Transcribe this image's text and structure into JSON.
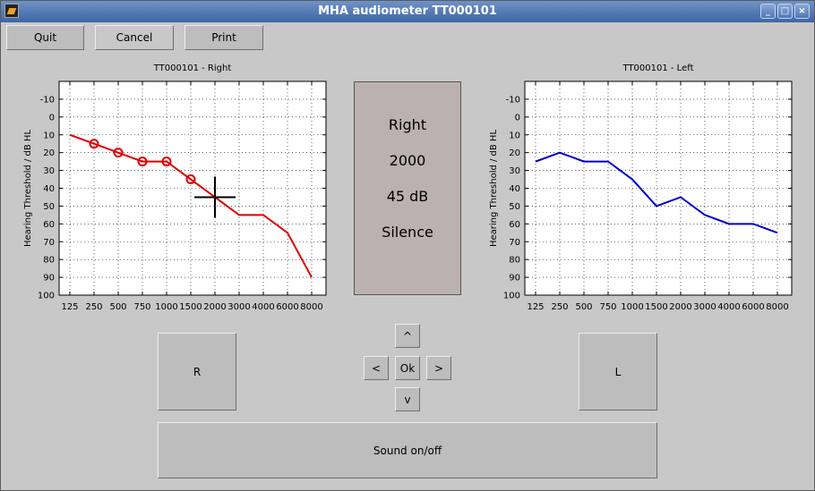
{
  "window": {
    "title": "MHA audiometer TT000101",
    "buttons": {
      "minimize": "_",
      "maximize": "□",
      "close": "×"
    }
  },
  "toolbar": {
    "quit_label": "Quit",
    "cancel_label": "Cancel",
    "print_label": "Print"
  },
  "status": {
    "ear": "Right",
    "frequency": "2000",
    "level": "45 dB",
    "sound": "Silence"
  },
  "controls": {
    "r_label": "R",
    "l_label": "L",
    "up_label": "^",
    "down_label": "v",
    "left_label": "<",
    "right_label": ">",
    "ok_label": "Ok",
    "sound_label": "Sound on/off"
  },
  "colors": {
    "right": "#e00000",
    "left": "#0000cc",
    "panel": "#bcb1b1"
  },
  "chart_data": [
    {
      "type": "line",
      "title": "TT000101 - Right",
      "ylabel": "Hearing Threshold / dB HL",
      "xlabel": "",
      "categories": [
        "125",
        "250",
        "500",
        "750",
        "1000",
        "1500",
        "2000",
        "3000",
        "4000",
        "6000",
        "8000"
      ],
      "yticks": [
        -10,
        0,
        10,
        20,
        30,
        40,
        50,
        60,
        70,
        80,
        90,
        100
      ],
      "ylim": [
        -20,
        100
      ],
      "y_reversed": true,
      "grid": true,
      "series": [
        {
          "color": "#e00000",
          "values": [
            10,
            15,
            20,
            25,
            25,
            35,
            45,
            55,
            55,
            65,
            90
          ],
          "measured": [
            false,
            true,
            true,
            true,
            true,
            true,
            false,
            false,
            false,
            false,
            false
          ]
        }
      ],
      "cursor": {
        "frequency": "2000",
        "level": 45
      }
    },
    {
      "type": "line",
      "title": "TT000101 - Left",
      "ylabel": "Hearing Threshold / dB HL",
      "xlabel": "",
      "categories": [
        "125",
        "250",
        "500",
        "750",
        "1000",
        "1500",
        "2000",
        "3000",
        "4000",
        "6000",
        "8000"
      ],
      "yticks": [
        -10,
        0,
        10,
        20,
        30,
        40,
        50,
        60,
        70,
        80,
        90,
        100
      ],
      "ylim": [
        -20,
        100
      ],
      "y_reversed": true,
      "grid": true,
      "series": [
        {
          "color": "#0000cc",
          "values": [
            25,
            20,
            25,
            25,
            35,
            50,
            45,
            55,
            60,
            60,
            65
          ],
          "measured": [
            false,
            false,
            false,
            false,
            false,
            false,
            false,
            false,
            false,
            false,
            false
          ]
        }
      ]
    }
  ]
}
